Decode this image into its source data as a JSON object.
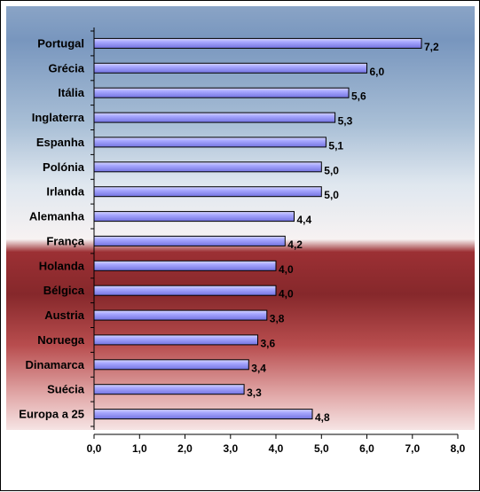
{
  "chart_data": {
    "type": "bar",
    "orientation": "horizontal",
    "categories": [
      "Portugal",
      "Grécia",
      "Itália",
      "Inglaterra",
      "Espanha",
      "Polónia",
      "Irlanda",
      "Alemanha",
      "França",
      "Holanda",
      "Bélgica",
      "Austria",
      "Noruega",
      "Dinamarca",
      "Suécia",
      "Europa a 25"
    ],
    "value_labels": [
      "7,2",
      "6,0",
      "5,6",
      "5,3",
      "5,1",
      "5,0",
      "5,0",
      "4,4",
      "4,2",
      "4,0",
      "4,0",
      "3,8",
      "3,6",
      "3,4",
      "3,3",
      "4,8"
    ],
    "values": [
      7.2,
      6.0,
      5.6,
      5.3,
      5.1,
      5.0,
      5.0,
      4.4,
      4.2,
      4.0,
      4.0,
      3.8,
      3.6,
      3.4,
      3.3,
      4.8
    ],
    "xlim": [
      0,
      8
    ],
    "ticks": [
      "0,0",
      "1,0",
      "2,0",
      "3,0",
      "4,0",
      "5,0",
      "6,0",
      "7,0",
      "8,0"
    ],
    "title": "",
    "xlabel": "",
    "ylabel": "",
    "grid": false,
    "legend": "none",
    "colors": {
      "bar_fill": "#9999ff",
      "bar_fill_light": "#ccccff",
      "bar_edge": "#000000",
      "background_top": "#8fa8c8",
      "background_mid": "#f2f4f6",
      "background_red": "#a8363a",
      "background_bottom": "#f4dede"
    }
  }
}
